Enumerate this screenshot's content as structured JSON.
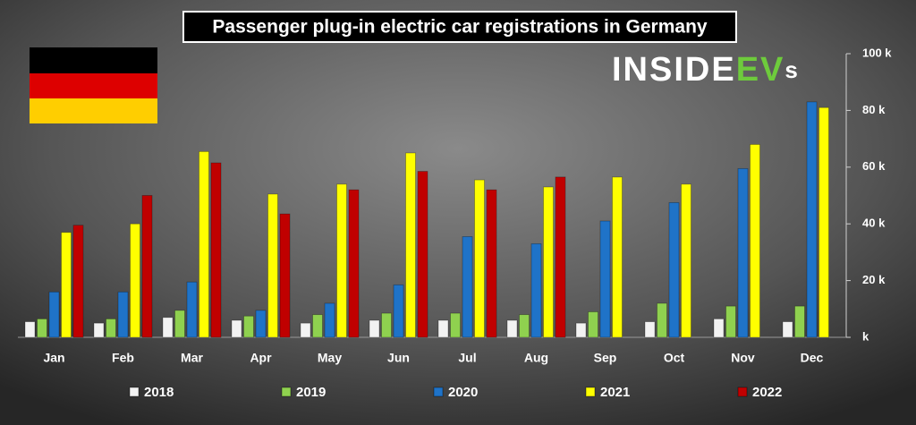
{
  "chart_data": {
    "type": "bar",
    "title": "Passenger plug-in electric car registrations in Germany",
    "logo": [
      "INSIDE",
      "EV",
      "s"
    ],
    "categories": [
      "Jan",
      "Feb",
      "Mar",
      "Apr",
      "May",
      "Jun",
      "Jul",
      "Aug",
      "Sep",
      "Oct",
      "Nov",
      "Dec"
    ],
    "series": [
      {
        "name": "2018",
        "color": "#f2f2f2",
        "values": [
          5.5,
          5,
          7,
          6,
          5,
          6,
          6,
          6,
          5,
          5.5,
          6.5,
          5.5
        ]
      },
      {
        "name": "2019",
        "color": "#8fd14f",
        "values": [
          6.5,
          6.5,
          9.5,
          7.5,
          8,
          8.5,
          8.5,
          8,
          9,
          12,
          11,
          11
        ]
      },
      {
        "name": "2020",
        "color": "#1f73c8",
        "values": [
          16,
          16,
          19.5,
          9.5,
          12,
          18.5,
          35.5,
          33,
          41,
          47.5,
          59.5,
          83
        ]
      },
      {
        "name": "2021",
        "color": "#ffff00",
        "values": [
          37,
          40,
          65.5,
          50.5,
          54,
          65,
          55.5,
          53,
          56.5,
          54,
          68,
          81
        ]
      },
      {
        "name": "2022",
        "color": "#c00000",
        "values": [
          39.5,
          50,
          61.5,
          43.5,
          52,
          58.5,
          52,
          56.5,
          null,
          null,
          null,
          null
        ]
      }
    ],
    "ylim": [
      0,
      100
    ],
    "yticks": [
      {
        "value": 0,
        "label": "k"
      },
      {
        "value": 20,
        "label": "20 k"
      },
      {
        "value": 40,
        "label": "40 k"
      },
      {
        "value": 60,
        "label": "60 k"
      },
      {
        "value": 80,
        "label": "80 k"
      },
      {
        "value": 100,
        "label": "100 k"
      }
    ],
    "grid": false
  }
}
